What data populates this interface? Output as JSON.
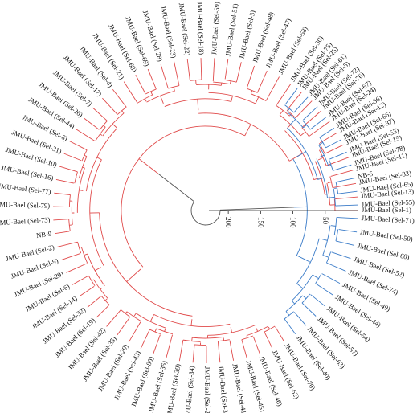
{
  "colors": {
    "red_clade": "#e04a4a",
    "blue_clade": "#3a7bc8",
    "root": "#555555",
    "text": "#111111"
  },
  "scale": {
    "ticks": [
      "200",
      "150",
      "100",
      "50"
    ],
    "values": [
      200,
      150,
      100,
      50
    ]
  },
  "leaves": [
    {
      "label": "JMU-Bael (Sel-1)",
      "angle": 0,
      "clade": "red"
    },
    {
      "label": "JMU-Bael (Sel-13)",
      "angle": -5.1,
      "clade": "red"
    },
    {
      "label": "JMU-Bael (Sel-33)",
      "angle": -10.2,
      "clade": "red"
    },
    {
      "label": "JMU-Bael (Sel-11)",
      "angle": -15.3,
      "clade": "red"
    },
    {
      "label": "JMU-Bael (Sel-15)",
      "angle": -20.4,
      "clade": "red"
    },
    {
      "label": "JMU-Bael (Sel-37)",
      "angle": -25.5,
      "clade": "red"
    },
    {
      "label": "JMU-Bael (Sel-12)",
      "angle": -30.6,
      "clade": "red"
    },
    {
      "label": "JMU-Bael (Sel-24)",
      "angle": -35.7,
      "clade": "red"
    },
    {
      "label": "JMU-Bael (Sel-76)",
      "angle": -40.8,
      "clade": "red"
    },
    {
      "label": "JMU-Bael (Sel-5)",
      "angle": -45.9,
      "clade": "red"
    },
    {
      "label": "JMU-Bael (Sel-25)",
      "angle": -51.0,
      "clade": "red"
    },
    {
      "label": "JMU-Bael (Sel-30)",
      "angle": -56.1,
      "clade": "red"
    },
    {
      "label": "JMU-Bael (Sel-58)",
      "angle": -61.2,
      "clade": "red"
    },
    {
      "label": "JMU-Bael (Sel-47)",
      "angle": -66.3,
      "clade": "red"
    },
    {
      "label": "JMU-Bael (Sel-48)",
      "angle": -71.4,
      "clade": "red"
    },
    {
      "label": "JMU-Bael (Sel-3)",
      "angle": -76.5,
      "clade": "red"
    },
    {
      "label": "JMU-Bael (Sel-51)",
      "angle": -81.6,
      "clade": "red"
    },
    {
      "label": "JMU-Bael (Sel-59)",
      "angle": -86.7,
      "clade": "red"
    },
    {
      "label": "JMU-Bael (Sel-18)",
      "angle": -91.8,
      "clade": "red"
    },
    {
      "label": "JMU-Bael (Sel-22)",
      "angle": -96.9,
      "clade": "red"
    },
    {
      "label": "JMU-Bael (Sel-23)",
      "angle": -102.0,
      "clade": "red"
    },
    {
      "label": "JMU-Bael (Sel-28)",
      "angle": -107.1,
      "clade": "red"
    },
    {
      "label": "JMU-Bael (Sel-69)",
      "angle": -112.2,
      "clade": "red"
    },
    {
      "label": "JMU-Bael (Sel-68)",
      "angle": -117.3,
      "clade": "red"
    },
    {
      "label": "JMU-Bael (Sel-21)",
      "angle": -122.4,
      "clade": "red"
    },
    {
      "label": "JMU-Bael (Sel-4)",
      "angle": -127.5,
      "clade": "red"
    },
    {
      "label": "JMU-Bael (Sel-17)",
      "angle": -132.6,
      "clade": "red"
    },
    {
      "label": "JMU-Bael (Sel-7)",
      "angle": -137.7,
      "clade": "red"
    },
    {
      "label": "JMU-Bael (Sel-26)",
      "angle": -142.8,
      "clade": "red"
    },
    {
      "label": "JMU-Bael (Sel-44)",
      "angle": -147.9,
      "clade": "red"
    },
    {
      "label": "JMU-Bael (Sel-8)",
      "angle": -153.0,
      "clade": "red"
    },
    {
      "label": "JMU-Bael (Sel-31)",
      "angle": -158.1,
      "clade": "red"
    },
    {
      "label": "JMU-Bael (Sel-10)",
      "angle": -163.2,
      "clade": "red"
    },
    {
      "label": "JMU-Bael (Sel-16)",
      "angle": -168.3,
      "clade": "red"
    },
    {
      "label": "JMU-Bael (Sel-77)",
      "angle": -173.4,
      "clade": "red"
    },
    {
      "label": "JMU-Bael (Sel-79)",
      "angle": -178.5,
      "clade": "red"
    },
    {
      "label": "JMU-Bael (Sel-73)",
      "angle": -183.6,
      "clade": "red"
    },
    {
      "label": "NB-9",
      "angle": -188.7,
      "clade": "red"
    },
    {
      "label": "JMU-Bael (Sel-2)",
      "angle": -193.8,
      "clade": "red"
    },
    {
      "label": "JMU-Bael (Sel-9)",
      "angle": -198.9,
      "clade": "red"
    },
    {
      "label": "JMU-Bael (Sel-29)",
      "angle": -204.0,
      "clade": "red"
    },
    {
      "label": "JMU-Bael (Sel-6)",
      "angle": -209.1,
      "clade": "red"
    },
    {
      "label": "JMU-Bael (Sel-14)",
      "angle": -214.2,
      "clade": "red"
    },
    {
      "label": "JMU-Bael (Sel-32)",
      "angle": -219.3,
      "clade": "red"
    },
    {
      "label": "JMU-Bael (Sel-19)",
      "angle": -224.4,
      "clade": "red"
    },
    {
      "label": "JMU-Bael (Sel-42)",
      "angle": -229.5,
      "clade": "red"
    },
    {
      "label": "JMU-Bael (Sel-35)",
      "angle": -234.6,
      "clade": "red"
    },
    {
      "label": "JMU-Bael (Sel-20)",
      "angle": -239.7,
      "clade": "red"
    },
    {
      "label": "JMU-Bael (Sel-43)",
      "angle": -244.8,
      "clade": "red"
    },
    {
      "label": "JMU-Bael (Sel-80)",
      "angle": -249.9,
      "clade": "red"
    },
    {
      "label": "JMU-Bael (Sel-36)",
      "angle": -255.0,
      "clade": "red"
    },
    {
      "label": "JMU-Bael (Sel-39)",
      "angle": -260.1,
      "clade": "red"
    },
    {
      "label": "JMU-Bael (Sel-34)",
      "angle": -265.2,
      "clade": "red"
    },
    {
      "label": "JMU-Bael (Sel-27)",
      "angle": -270.3,
      "clade": "red"
    },
    {
      "label": "JMU-Bael (Sel-38)",
      "angle": -275.4,
      "clade": "red"
    },
    {
      "label": "JMU-Bael (Sel-41)",
      "angle": -280.5,
      "clade": "red"
    },
    {
      "label": "JMU-Bael (Sel-45)",
      "angle": -285.6,
      "clade": "red"
    },
    {
      "label": "JMU-Bael (Sel-46)",
      "angle": -290.7,
      "clade": "red"
    },
    {
      "label": "JMU-Bael (Sel-62)",
      "angle": -295.8,
      "clade": "red"
    },
    {
      "label": "JMU-Bael (Sel-70)",
      "angle": -300.9,
      "clade": "red"
    },
    {
      "label": "JMU-Bael (Sel-40)",
      "angle": -306.0,
      "clade": "blue"
    },
    {
      "label": "JMU-Bael (Sel-63)",
      "angle": -311.1,
      "clade": "blue"
    },
    {
      "label": "JMU-Bael (Sel-57)",
      "angle": -316.2,
      "clade": "blue"
    },
    {
      "label": "JMU-Bael (Sel-54)",
      "angle": -321.3,
      "clade": "blue"
    },
    {
      "label": "JMU-Bael (Sel-44)",
      "angle": -326.4,
      "clade": "blue"
    },
    {
      "label": "JMU-Bael (Sel-49)",
      "angle": -331.5,
      "clade": "blue"
    },
    {
      "label": "JMU-Bael (Sel-74)",
      "angle": -336.6,
      "clade": "blue"
    },
    {
      "label": "JMU-Bael (Sel-52)",
      "angle": -341.7,
      "clade": "blue"
    },
    {
      "label": "JMU-Bael (Sel-60)",
      "angle": -346.8,
      "clade": "blue"
    },
    {
      "label": "JMU-Bael (Sel-50)",
      "angle": -351.9,
      "clade": "blue"
    },
    {
      "label": "JMU-Bael (Sel-71)",
      "angle": -357.0,
      "clade": "blue"
    },
    {
      "label": "JMU-Bael (Sel-55)",
      "angle": -362.1,
      "clade": "blue"
    },
    {
      "label": "JMU-Bael (Sel-65)",
      "angle": -367.2,
      "clade": "blue"
    },
    {
      "label": "NB-5",
      "angle": -372.3,
      "clade": "blue"
    },
    {
      "label": "JMU-Bael (Sel-78)",
      "angle": -377.4,
      "clade": "blue"
    },
    {
      "label": "JMU-Bael (Sel-53)",
      "angle": -382.5,
      "clade": "blue"
    },
    {
      "label": "JMU-Bael (Sel-66)",
      "angle": -387.6,
      "clade": "blue"
    },
    {
      "label": "JMU-Bael (Sel-56)",
      "angle": -392.7,
      "clade": "blue"
    },
    {
      "label": "JMU-Bael (Sel-67)",
      "angle": -397.8,
      "clade": "blue"
    },
    {
      "label": "JMU-Bael (Sel-72)",
      "angle": -402.9,
      "clade": "blue"
    },
    {
      "label": "JMU-Bael (Sel-61)",
      "angle": -408.0,
      "clade": "blue"
    },
    {
      "label": "JMU-Bael (Sel-75)",
      "angle": -413.1,
      "clade": "blue"
    }
  ]
}
